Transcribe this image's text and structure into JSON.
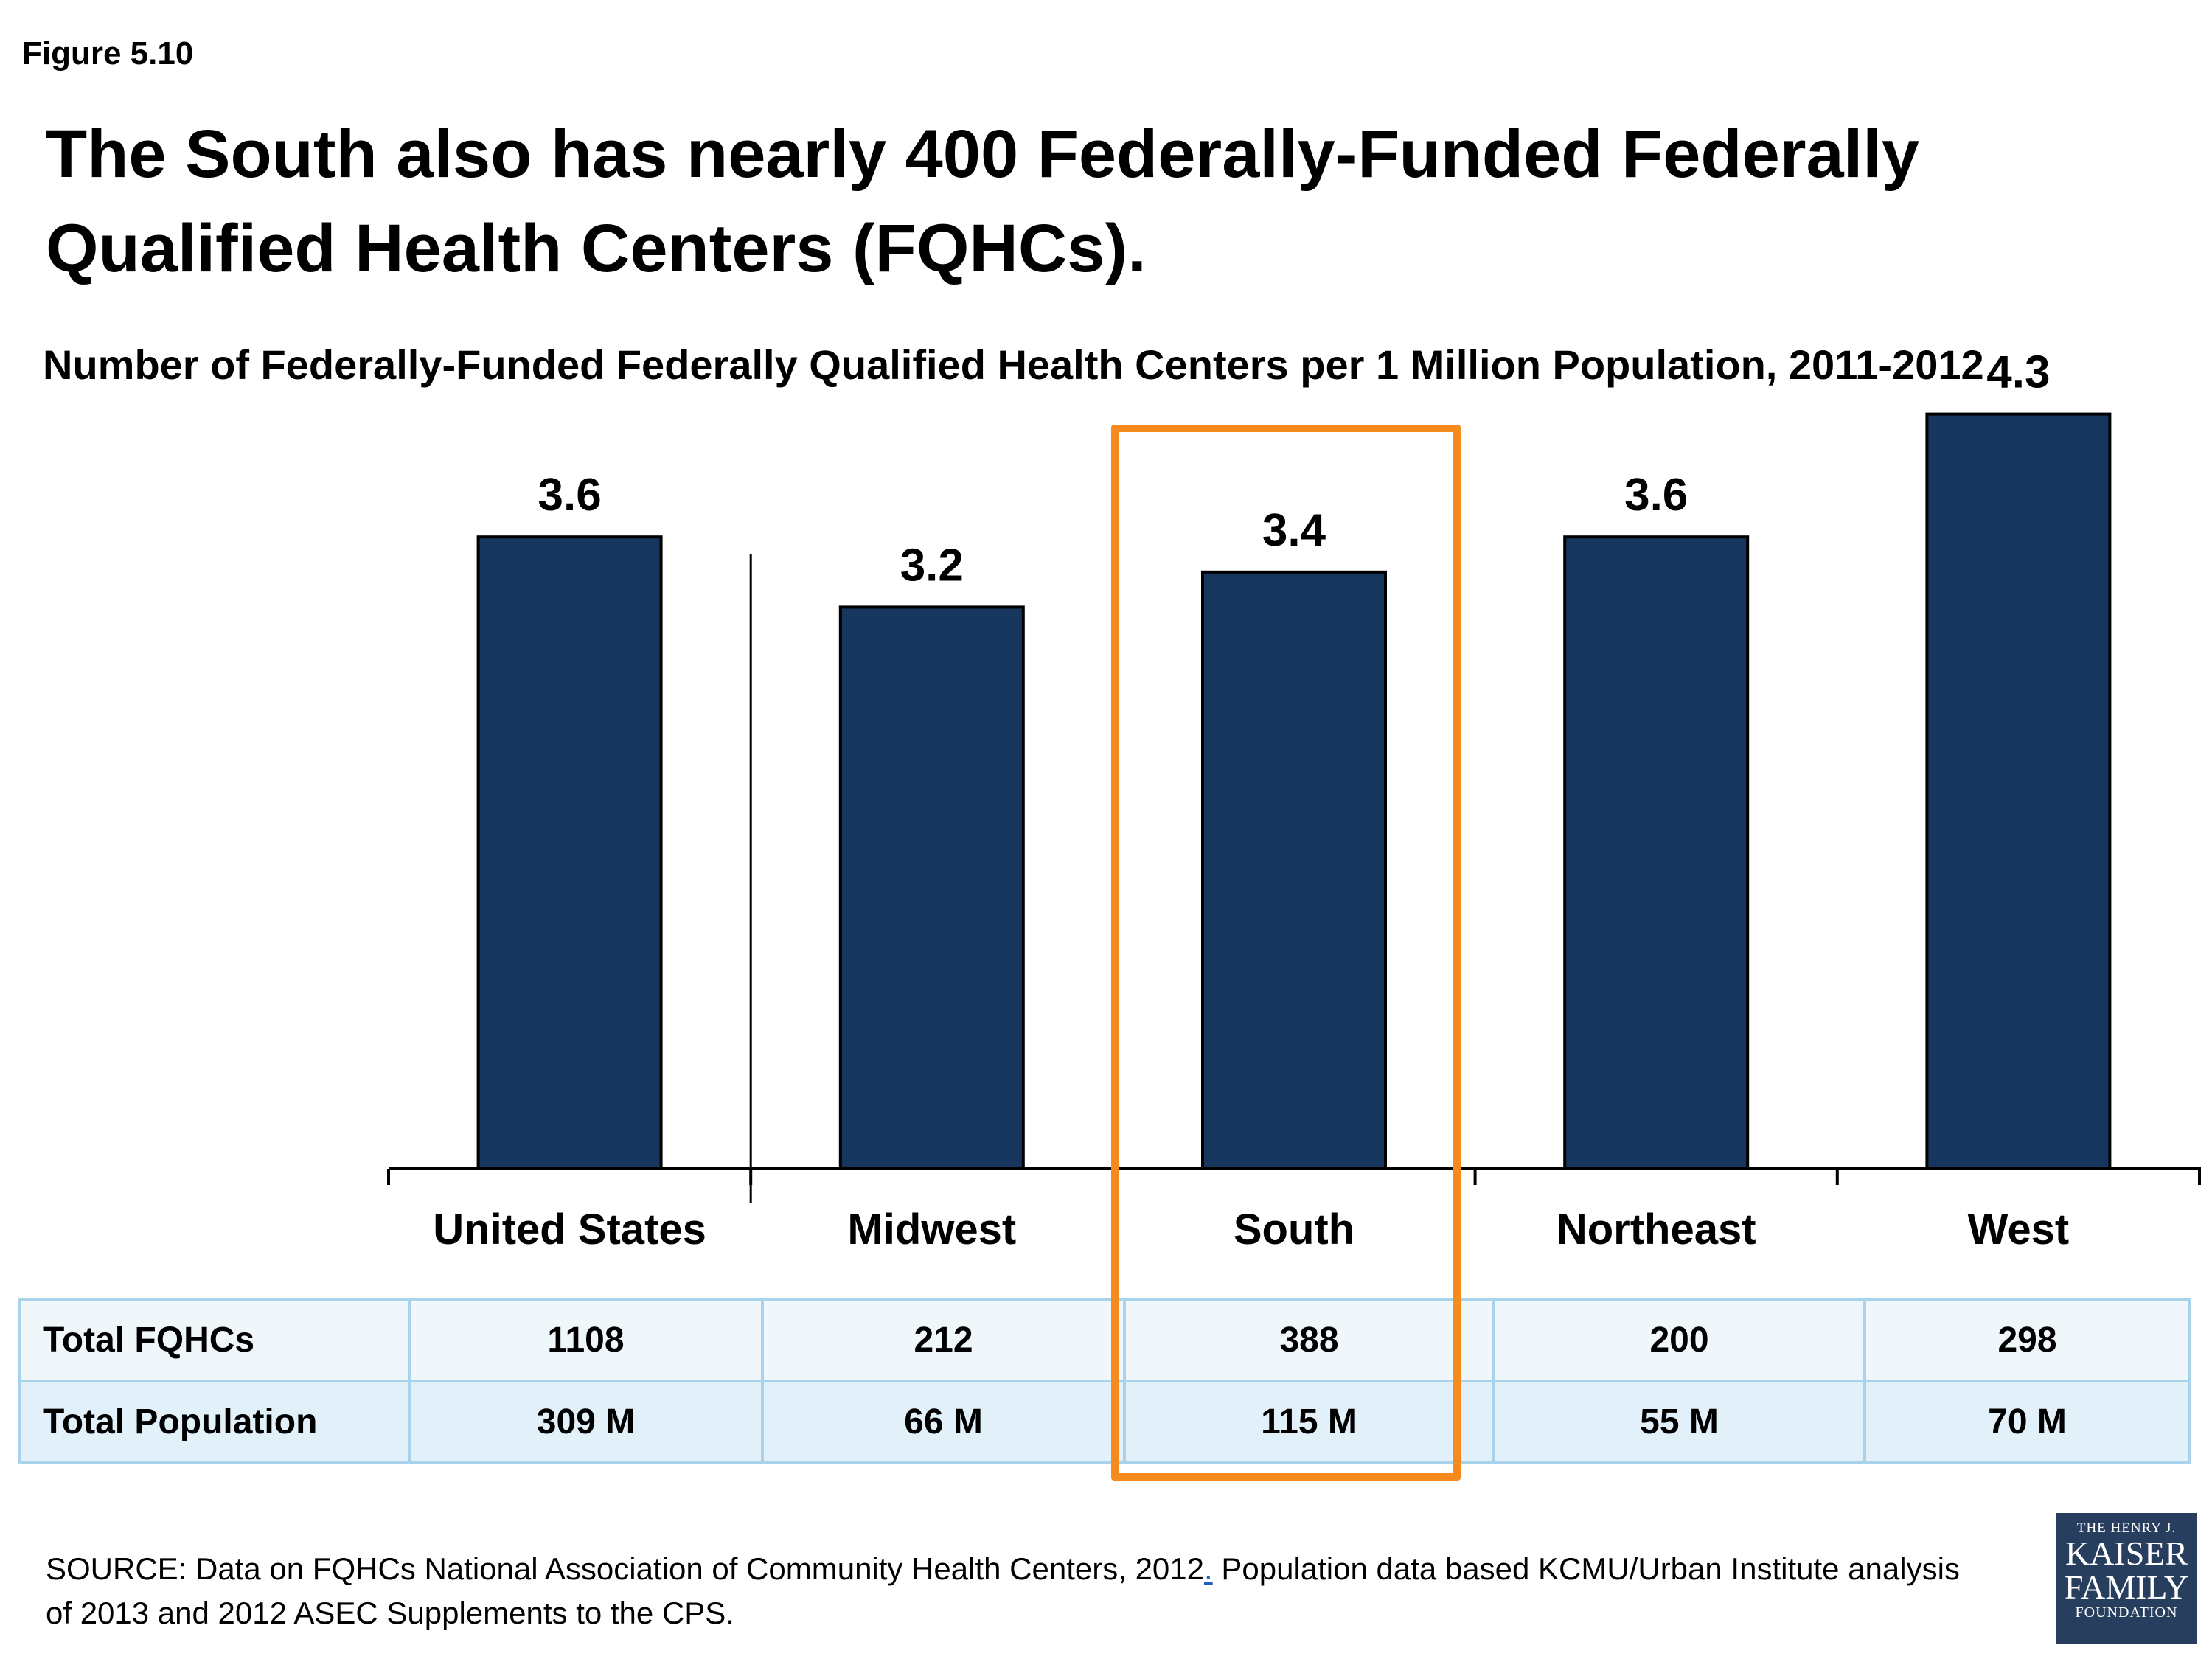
{
  "figure_label": "Figure 5.10",
  "title": "The South also has nearly 400 Federally-Funded Federally Qualified Health Centers (FQHCs).",
  "chart_data": {
    "type": "bar",
    "title": "Number of Federally-Funded Federally Qualified Health Centers per 1 Million Population, 2011-2012",
    "categories": [
      "United States",
      "Midwest",
      "South",
      "Northeast",
      "West"
    ],
    "values": [
      3.6,
      3.2,
      3.4,
      3.6,
      4.3
    ],
    "value_labels": [
      "3.6",
      "3.2",
      "3.4",
      "3.6",
      "4.3"
    ],
    "highlighted_category": "South",
    "bar_color": "#17365d",
    "highlight_color": "#f58a1f",
    "xlabel": "",
    "ylabel": "",
    "ylim": [
      0,
      4.5
    ],
    "grid": false
  },
  "table": {
    "rows": [
      {
        "label": "Total FQHCs",
        "values": [
          "1108",
          "212",
          "388",
          "200",
          "298"
        ]
      },
      {
        "label": "Total Population",
        "values": [
          "309 M",
          "66 M",
          "115 M",
          "55 M",
          "70 M"
        ]
      }
    ]
  },
  "source": {
    "text_before": "SOURCE: Data on FQHCs  National Association of Community Health Centers, 2012",
    "link_text": ".",
    "text_after": " Population data based KCMU/Urban Institute analysis of 2013 and 2012 ASEC Supplements to the CPS."
  },
  "logo": {
    "line1": "THE HENRY J.",
    "line2": "KAISER",
    "line3": "FAMILY",
    "line4": "FOUNDATION"
  }
}
